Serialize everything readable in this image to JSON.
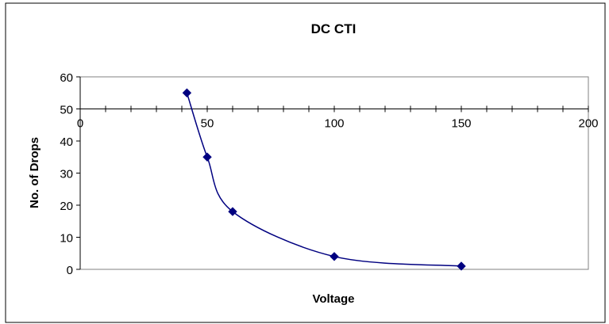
{
  "chart_data": {
    "type": "scatter",
    "title": "DC CTI",
    "xlabel": "Voltage",
    "ylabel": "No. of Drops",
    "x_axis_line_at_y": 50,
    "xlim": [
      0,
      200
    ],
    "ylim": [
      0,
      60
    ],
    "x_ticks": [
      0,
      50,
      100,
      150,
      200
    ],
    "y_ticks": [
      0,
      10,
      20,
      30,
      40,
      50,
      60
    ],
    "x_minor_step": 10,
    "grid": false,
    "legend": "none",
    "smoothed_line": true,
    "series": [
      {
        "color": "#000080",
        "marker": "diamond",
        "x": [
          42,
          50,
          60,
          100,
          150
        ],
        "y": [
          55,
          35,
          18,
          4,
          1
        ]
      }
    ]
  }
}
